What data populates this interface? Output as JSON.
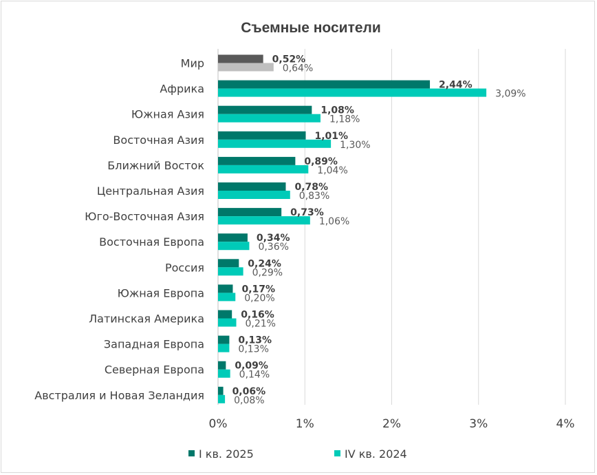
{
  "chart_data": {
    "type": "bar",
    "orientation": "horizontal",
    "title": "Съемные носители",
    "categories": [
      "Мир",
      "Африка",
      "Южная Азия",
      "Восточная Азия",
      "Ближний Восток",
      "Центральная Азия",
      "Юго-Восточная Азия",
      "Восточная Европа",
      "Россия",
      "Южная Европа",
      "Латинская Америка",
      "Западная Европа",
      "Северная Европа",
      "Австралия и Новая Зеландия"
    ],
    "series": [
      {
        "name": "I кв. 2025",
        "values": [
          0.52,
          2.44,
          1.08,
          1.01,
          0.89,
          0.78,
          0.73,
          0.34,
          0.24,
          0.17,
          0.16,
          0.13,
          0.09,
          0.06
        ],
        "labels": [
          "0,52%",
          "2,44%",
          "1,08%",
          "1,01%",
          "0,89%",
          "0,78%",
          "0,73%",
          "0,34%",
          "0,24%",
          "0,17%",
          "0,16%",
          "0,13%",
          "0,09%",
          "0,06%"
        ],
        "color": "#00786A",
        "highlight_color": "#595959"
      },
      {
        "name": "IV кв. 2024",
        "values": [
          0.64,
          3.09,
          1.18,
          1.3,
          1.04,
          0.83,
          1.06,
          0.36,
          0.29,
          0.2,
          0.21,
          0.13,
          0.14,
          0.08
        ],
        "labels": [
          "0,64%",
          "3,09%",
          "1,18%",
          "1,30%",
          "1,04%",
          "0,83%",
          "1,06%",
          "0,36%",
          "0,29%",
          "0,20%",
          "0,21%",
          "0,13%",
          "0,14%",
          "0,08%"
        ],
        "color": "#00CBB8",
        "highlight_color": "#BFBFBF"
      }
    ],
    "xlim": [
      0,
      4
    ],
    "xticks": [
      "0%",
      "1%",
      "2%",
      "3%",
      "4%"
    ],
    "grid": true,
    "legend": "bottom"
  }
}
